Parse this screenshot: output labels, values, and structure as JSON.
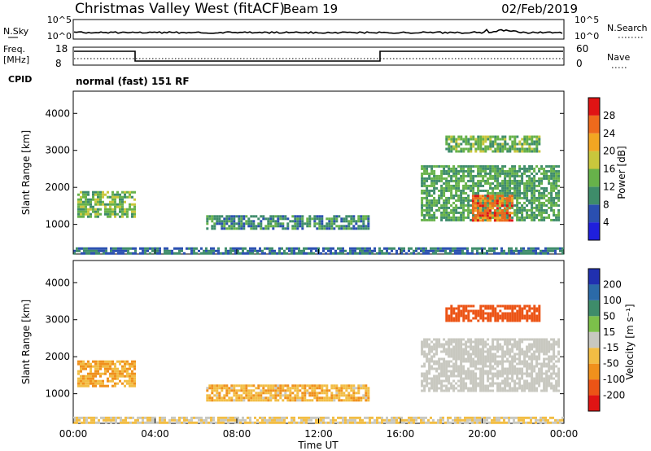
{
  "header": {
    "title": "Christmas Valley West (fitACF)",
    "beam": "Beam 19",
    "date": "02/Feb/2019"
  },
  "status_panels": {
    "nsky_label": "N.Sky",
    "nsearch_label": "N.Search",
    "noise_ticks": [
      "10^5",
      "10^0"
    ],
    "freq_label": "Freq.",
    "freq_unit": "[MHz]",
    "freq_ticks": [
      "18",
      "8"
    ],
    "nave_label": "Nave",
    "nave_ticks": [
      "60",
      "0"
    ],
    "cpid_label": "CPID",
    "cpid_text": "normal (fast) 151 RF"
  },
  "colors": {
    "power": [
      "#1f1fdc",
      "#2a4fb0",
      "#3e8c6a",
      "#67b24a",
      "#c9c73c",
      "#f2a622",
      "#ee6a1c",
      "#e01414"
    ],
    "velocity": [
      "#e01414",
      "#ec5416",
      "#f0901c",
      "#f2bd44",
      "#c8c8c0",
      "#7cc04a",
      "#3e8c6a",
      "#2b6aa8",
      "#2030b0"
    ],
    "ground_scatter": "#c8c8c0"
  },
  "chart_data": [
    {
      "type": "heatmap",
      "name": "power",
      "xlabel": "",
      "ylabel": "Slant Range [km]",
      "yticks": [
        1000,
        2000,
        3000,
        4000
      ],
      "ylim": [
        200,
        4600
      ],
      "xlim_hours": [
        0,
        24
      ],
      "colorbar": {
        "label": "Power [dB]",
        "ticks": [
          4,
          8,
          12,
          16,
          20,
          24,
          28
        ],
        "range": [
          0,
          32
        ]
      },
      "regions": [
        {
          "hours": [
            0.2,
            3.0
          ],
          "range_km": [
            1200,
            1900
          ],
          "level_db": 14
        },
        {
          "hours": [
            6.5,
            14.5
          ],
          "range_km": [
            900,
            1250
          ],
          "level_db": 10
        },
        {
          "hours": [
            17.0,
            23.8
          ],
          "range_km": [
            1100,
            2600
          ],
          "level_db": 12
        },
        {
          "hours": [
            19.5,
            21.5
          ],
          "range_km": [
            1100,
            1800
          ],
          "level_db": 26
        },
        {
          "hours": [
            18.2,
            22.8
          ],
          "range_km": [
            2950,
            3400
          ],
          "level_db": 14
        },
        {
          "hours": [
            0.0,
            24.0
          ],
          "range_km": [
            200,
            380
          ],
          "level_db": 8
        }
      ]
    },
    {
      "type": "heatmap",
      "name": "velocity",
      "xlabel": "Time UT",
      "ylabel": "Slant Range [km]",
      "yticks": [
        1000,
        2000,
        3000,
        4000
      ],
      "ylim": [
        200,
        4600
      ],
      "xlim_hours": [
        0,
        24
      ],
      "xticks": [
        "00:00",
        "04:00",
        "08:00",
        "12:00",
        "16:00",
        "20:00",
        "00:00"
      ],
      "colorbar": {
        "label": "Velocity [m s⁻¹]",
        "ticks": [
          "200",
          "100",
          "50",
          "15",
          "-15",
          "-50",
          "-100",
          "-200"
        ]
      },
      "regions": [
        {
          "hours": [
            0.2,
            3.0
          ],
          "range_km": [
            1200,
            1900
          ],
          "velocity": -50
        },
        {
          "hours": [
            6.5,
            14.5
          ],
          "range_km": [
            850,
            1250
          ],
          "velocity": -40
        },
        {
          "hours": [
            17.0,
            23.8
          ],
          "range_km": [
            1100,
            2500
          ],
          "velocity": 0
        },
        {
          "hours": [
            18.2,
            22.8
          ],
          "range_km": [
            2950,
            3400
          ],
          "velocity": -150
        },
        {
          "hours": [
            0.0,
            24.0
          ],
          "range_km": [
            200,
            380
          ],
          "velocity": -20
        }
      ]
    }
  ]
}
